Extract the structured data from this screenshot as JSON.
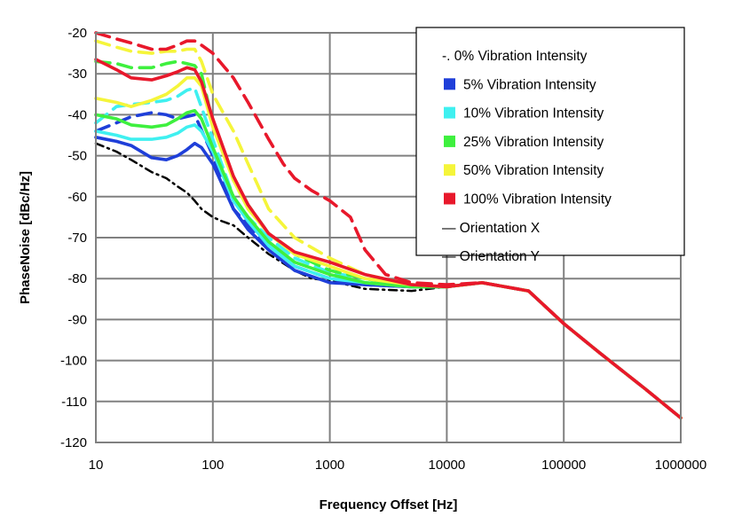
{
  "chart_data": {
    "type": "line",
    "xlabel": "Frequency  Offset [Hz]",
    "ylabel": "PhaseNoise  [dBc/Hz]",
    "x_scale": "log",
    "xlim": [
      10,
      1000000
    ],
    "ylim": [
      -120,
      -20
    ],
    "x_ticks": [
      "10",
      "100",
      "1000",
      "10000",
      "100000",
      "1000000"
    ],
    "y_ticks": [
      "-20",
      "-30",
      "-40",
      "-50",
      "-60",
      "-70",
      "-80",
      "-90",
      "-100",
      "-110",
      "-120"
    ],
    "grid": true,
    "legend_position": "top-right",
    "legend": [
      {
        "label": "-. 0% Vibration  Intensity",
        "marker": "none"
      },
      {
        "label": "5% Vibration  Intensity",
        "color": "#1f3fd9"
      },
      {
        "label": "10% Vibration  Intensity",
        "color": "#3ff0f0"
      },
      {
        "label": "25% Vibration  Intensity",
        "color": "#3ef03e"
      },
      {
        "label": "50% Vibration  Intensity",
        "color": "#f5f53a"
      },
      {
        "label": "100% Vibration  Intensity",
        "color": "#e8182b"
      },
      {
        "label": "— Orientation  X",
        "marker": "none"
      },
      {
        "label": "— Orientation  Y",
        "marker": "none"
      }
    ],
    "series": [
      {
        "name": "0% Vibration Intensity",
        "color": "#000000",
        "dash": "dashdot",
        "x": [
          10,
          15,
          20,
          30,
          40,
          50,
          60,
          70,
          80,
          100,
          120,
          150,
          200,
          300,
          500,
          700,
          1000,
          2000,
          5000,
          10000,
          20000,
          50000,
          100000,
          200000,
          500000,
          1000000
        ],
        "y": [
          -47,
          -49,
          -51,
          -54,
          -55.5,
          -57.5,
          -59,
          -61,
          -63,
          -65,
          -66,
          -67,
          -70,
          -74,
          -78,
          -80,
          -80.5,
          -82.5,
          -83,
          -82,
          -81,
          -83,
          -91,
          -98,
          -107,
          -114
        ]
      },
      {
        "name": "5% Vibration Intensity",
        "orientation": "X",
        "color": "#1f3fd9",
        "dash": "dash",
        "x": [
          10,
          15,
          20,
          30,
          40,
          50,
          70,
          100,
          150,
          200,
          300,
          500,
          1000,
          2000,
          5000,
          10000,
          20000,
          50000,
          100000,
          200000,
          500000,
          1000000
        ],
        "y": [
          -44,
          -42,
          -40.5,
          -39.5,
          -40,
          -41,
          -40,
          -50,
          -63,
          -67,
          -72,
          -77,
          -80,
          -81.5,
          -82,
          -82,
          -81,
          -83,
          -91,
          -98,
          -107,
          -114
        ]
      },
      {
        "name": "5% Vibration Intensity",
        "orientation": "Y",
        "color": "#1f3fd9",
        "dash": "solid",
        "x": [
          10,
          15,
          20,
          30,
          40,
          50,
          60,
          70,
          80,
          100,
          150,
          200,
          300,
          500,
          1000,
          2000,
          5000,
          10000,
          20000,
          50000,
          100000,
          200000,
          500000,
          1000000
        ],
        "y": [
          -45.5,
          -46.5,
          -47.5,
          -50.5,
          -51,
          -50,
          -48.5,
          -47,
          -48,
          -52,
          -63,
          -68,
          -73,
          -78,
          -81,
          -81.5,
          -82,
          -82,
          -81,
          -83,
          -91,
          -98,
          -107,
          -114
        ]
      },
      {
        "name": "10% Vibration Intensity",
        "orientation": "X",
        "color": "#3ff0f0",
        "dash": "dash",
        "x": [
          10,
          15,
          20,
          30,
          40,
          50,
          60,
          70,
          100,
          150,
          200,
          300,
          500,
          1000,
          2000,
          5000,
          10000,
          20000,
          50000,
          100000,
          200000,
          500000,
          1000000
        ],
        "y": [
          -42,
          -38,
          -37.5,
          -37,
          -36.5,
          -35.5,
          -34,
          -33.5,
          -46,
          -60,
          -65,
          -70,
          -75,
          -78.5,
          -80,
          -82,
          -82,
          -81,
          -83,
          -91,
          -98,
          -107,
          -114
        ]
      },
      {
        "name": "10% Vibration Intensity",
        "orientation": "Y",
        "color": "#3ff0f0",
        "dash": "solid",
        "x": [
          10,
          15,
          20,
          30,
          40,
          50,
          60,
          70,
          80,
          100,
          150,
          200,
          300,
          500,
          1000,
          2000,
          5000,
          10000,
          20000,
          50000,
          100000,
          200000,
          500000,
          1000000
        ],
        "y": [
          -44,
          -45,
          -46,
          -46,
          -45.5,
          -44.5,
          -43,
          -42.5,
          -44,
          -49,
          -61,
          -66,
          -72,
          -77,
          -80,
          -81,
          -82,
          -82,
          -81,
          -83,
          -91,
          -98,
          -107,
          -114
        ]
      },
      {
        "name": "25% Vibration Intensity",
        "orientation": "X",
        "color": "#3ef03e",
        "dash": "dash",
        "x": [
          10,
          15,
          20,
          30,
          40,
          50,
          60,
          70,
          80,
          100,
          150,
          200,
          300,
          500,
          1000,
          2000,
          5000,
          10000,
          20000,
          50000,
          100000,
          200000,
          500000,
          1000000
        ],
        "y": [
          -27,
          -27.5,
          -28.5,
          -28.5,
          -27.5,
          -27,
          -27.5,
          -28,
          -30,
          -42,
          -56,
          -62,
          -69,
          -74,
          -78,
          -80,
          -82,
          -82,
          -81,
          -83,
          -91,
          -98,
          -107,
          -114
        ]
      },
      {
        "name": "25% Vibration Intensity",
        "orientation": "Y",
        "color": "#3ef03e",
        "dash": "solid",
        "x": [
          10,
          15,
          20,
          30,
          40,
          50,
          60,
          70,
          80,
          100,
          150,
          200,
          300,
          500,
          1000,
          2000,
          5000,
          10000,
          20000,
          50000,
          100000,
          200000,
          500000,
          1000000
        ],
        "y": [
          -40,
          -41,
          -42.5,
          -43,
          -42.5,
          -41,
          -39.5,
          -39,
          -41,
          -48,
          -60,
          -65,
          -71,
          -76,
          -79,
          -81,
          -82,
          -82,
          -81,
          -83,
          -91,
          -98,
          -107,
          -114
        ]
      },
      {
        "name": "50% Vibration Intensity",
        "orientation": "X",
        "color": "#f5f53a",
        "dash": "dash",
        "x": [
          10,
          15,
          20,
          30,
          40,
          50,
          60,
          70,
          80,
          100,
          150,
          200,
          300,
          500,
          1000,
          2000,
          5000,
          10000,
          20000,
          50000,
          100000,
          200000,
          500000,
          1000000
        ],
        "y": [
          -22,
          -23.5,
          -24.5,
          -25,
          -24.5,
          -24.5,
          -24,
          -24,
          -27,
          -35,
          -44,
          -52,
          -63,
          -70,
          -75,
          -79,
          -81.5,
          -82,
          -81,
          -83,
          -91,
          -98,
          -107,
          -114
        ]
      },
      {
        "name": "50% Vibration Intensity",
        "orientation": "Y",
        "color": "#f5f53a",
        "dash": "solid",
        "x": [
          10,
          15,
          20,
          30,
          40,
          50,
          60,
          70,
          80,
          100,
          150,
          200,
          300,
          500,
          1000,
          2000,
          5000,
          10000,
          20000,
          50000,
          100000,
          200000,
          500000,
          1000000
        ],
        "y": [
          -36,
          -37,
          -38,
          -36.5,
          -35,
          -33,
          -31,
          -31,
          -33,
          -43,
          -56,
          -63,
          -69,
          -74,
          -77,
          -80,
          -81.5,
          -82,
          -81,
          -83,
          -91,
          -98,
          -107,
          -114
        ]
      },
      {
        "name": "100% Vibration Intensity",
        "orientation": "X",
        "color": "#e8182b",
        "dash": "dash",
        "x": [
          10,
          15,
          20,
          30,
          40,
          50,
          60,
          70,
          80,
          100,
          150,
          200,
          300,
          400,
          500,
          700,
          1000,
          1500,
          2000,
          3000,
          5000,
          10000,
          20000,
          50000,
          100000,
          200000,
          500000,
          1000000
        ],
        "y": [
          -20,
          -21.5,
          -22.5,
          -24,
          -24,
          -23,
          -22,
          -22,
          -23,
          -25,
          -31,
          -37,
          -46,
          -52,
          -55.5,
          -58.5,
          -61,
          -65,
          -73,
          -79,
          -81,
          -81.5,
          -81,
          -83,
          -91,
          -98,
          -107,
          -114
        ]
      },
      {
        "name": "100% Vibration Intensity",
        "orientation": "Y",
        "color": "#e8182b",
        "dash": "solid",
        "x": [
          10,
          15,
          20,
          30,
          40,
          50,
          60,
          70,
          80,
          100,
          150,
          200,
          300,
          500,
          1000,
          2000,
          5000,
          10000,
          20000,
          50000,
          100000,
          200000,
          500000,
          1000000
        ],
        "y": [
          -26.5,
          -29,
          -31,
          -31.5,
          -30.5,
          -29.5,
          -28.5,
          -29,
          -32,
          -41,
          -55,
          -62,
          -69,
          -73.5,
          -76,
          -79,
          -81.5,
          -82,
          -81,
          -83,
          -91,
          -98,
          -107,
          -114
        ]
      }
    ]
  }
}
